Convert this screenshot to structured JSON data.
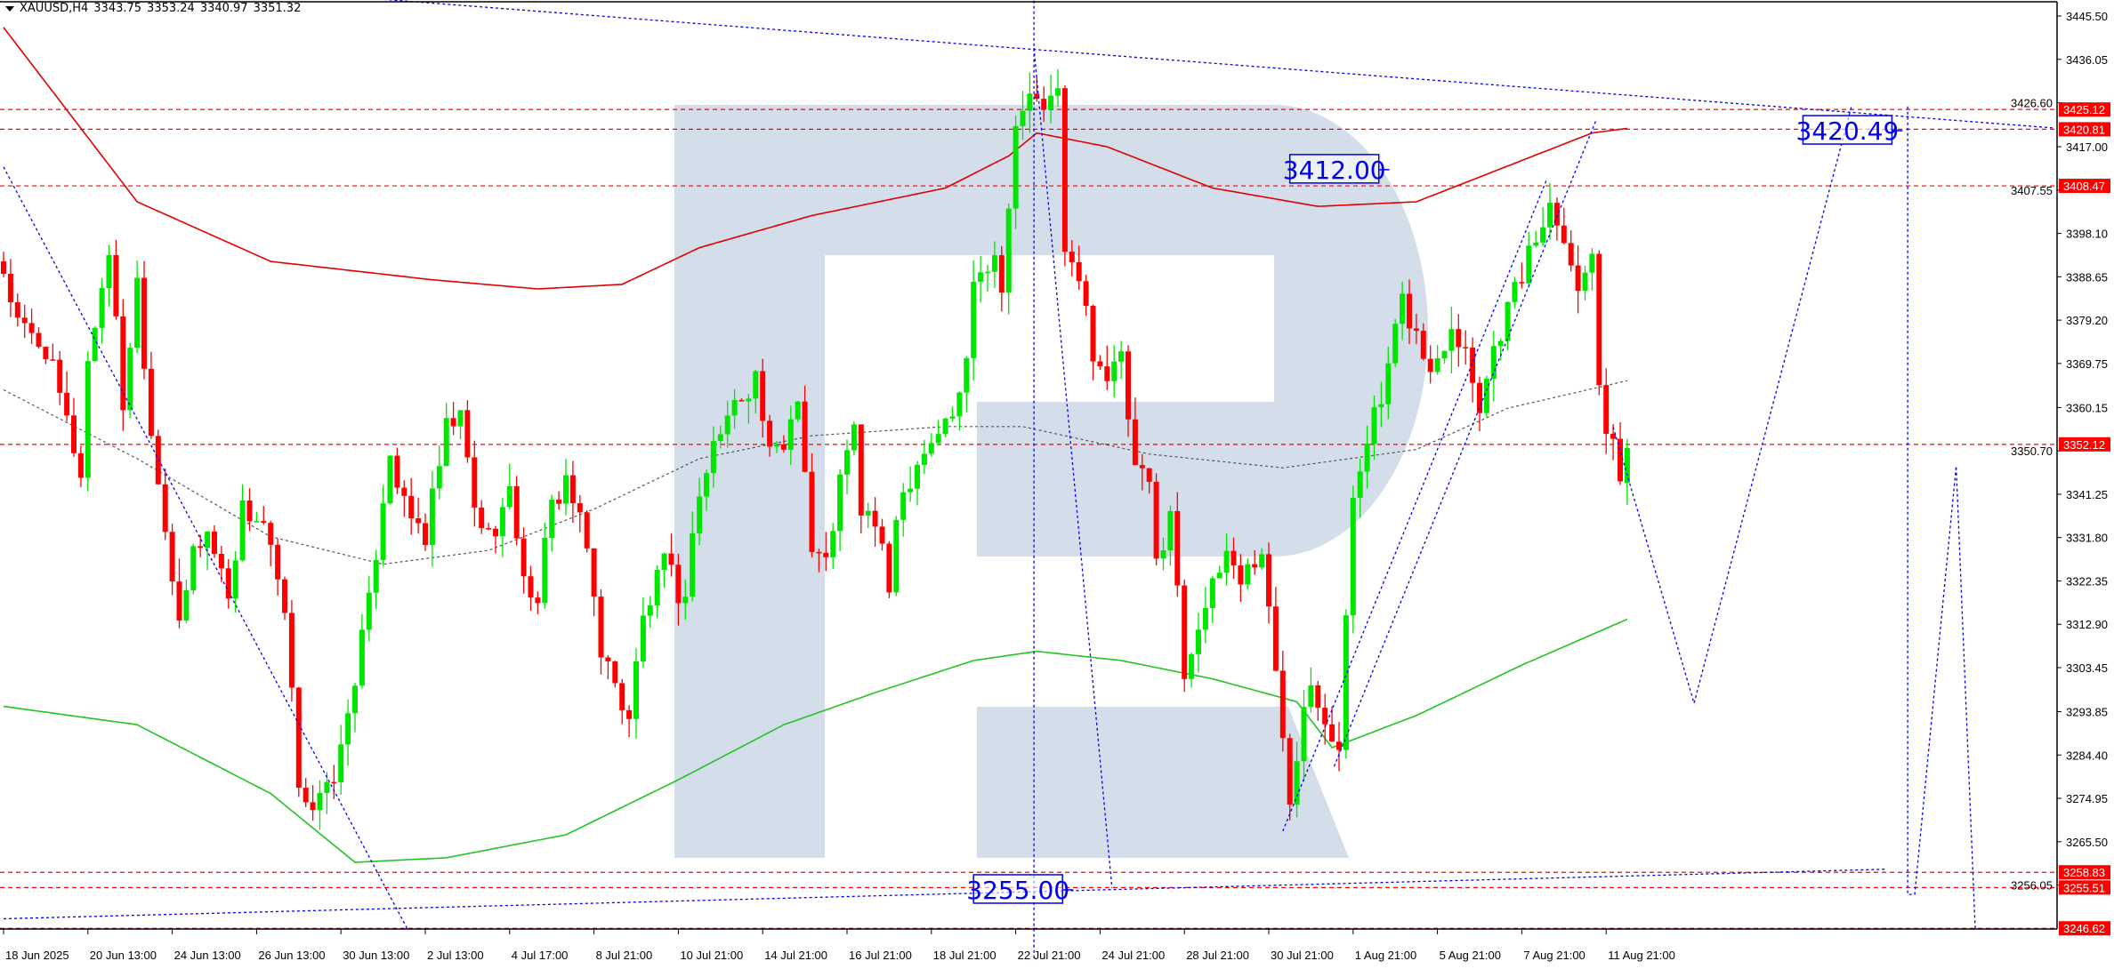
{
  "header": {
    "symbol": "XAUUSD,H4",
    "open": "3343.75",
    "high": "3353.24",
    "low": "3340.97",
    "close": "3351.32"
  },
  "colors": {
    "bull": "#00e600",
    "bear": "#ff0000",
    "ma_slow": "#e00000",
    "ma_mid": "#555555",
    "ma_green": "#22c322",
    "levels": "#ff0000",
    "drawings": "#0000ee",
    "watermark": "#d3deea"
  },
  "chart_data": {
    "type": "candlestick",
    "symbol": "XAUUSD",
    "timeframe": "H4",
    "ylim": [
      3246.62,
      3445.5
    ],
    "y_ticks": [
      "3445.50",
      "3436.05",
      "3426.60",
      "3417.00",
      "3407.55",
      "3398.10",
      "3388.65",
      "3379.20",
      "3369.75",
      "3360.15",
      "3350.70",
      "3341.25",
      "3331.80",
      "3322.35",
      "3312.90",
      "3303.45",
      "3293.85",
      "3284.40",
      "3274.95",
      "3265.50",
      "3256.05"
    ],
    "x_labels": [
      "18 Jun 2025",
      "20 Jun 13:00",
      "24 Jun 13:00",
      "26 Jun 13:00",
      "30 Jun 13:00",
      "2 Jul 13:00",
      "4 Jul 17:00",
      "8 Jul 21:00",
      "10 Jul 21:00",
      "14 Jul 21:00",
      "16 Jul 21:00",
      "18 Jul 21:00",
      "22 Jul 21:00",
      "24 Jul 21:00",
      "28 Jul 21:00",
      "30 Jul 21:00",
      "1 Aug 21:00",
      "5 Aug 21:00",
      "7 Aug 21:00",
      "11 Aug 21:00"
    ],
    "bars_per_label": 12,
    "price_path_bar_close": [
      [
        0,
        3390
      ],
      [
        2,
        3378
      ],
      [
        6,
        3373
      ],
      [
        11,
        3346
      ],
      [
        12,
        3370
      ],
      [
        15,
        3395
      ],
      [
        17,
        3361
      ],
      [
        19,
        3388
      ],
      [
        21,
        3355
      ],
      [
        23,
        3335
      ],
      [
        25,
        3311
      ],
      [
        27,
        3329
      ],
      [
        29,
        3333
      ],
      [
        32,
        3320
      ],
      [
        34,
        3338
      ],
      [
        37,
        3335
      ],
      [
        40,
        3314
      ],
      [
        42,
        3279
      ],
      [
        44,
        3273
      ],
      [
        46,
        3276
      ],
      [
        48,
        3285
      ],
      [
        50,
        3302
      ],
      [
        52,
        3317
      ],
      [
        54,
        3341
      ],
      [
        55,
        3351
      ],
      [
        57,
        3338
      ],
      [
        60,
        3332
      ],
      [
        63,
        3355
      ],
      [
        65,
        3358
      ],
      [
        67,
        3338
      ],
      [
        69,
        3332
      ],
      [
        72,
        3341
      ],
      [
        75,
        3317
      ],
      [
        76,
        3320
      ],
      [
        78,
        3338
      ],
      [
        80,
        3345
      ],
      [
        83,
        3329
      ],
      [
        85,
        3308
      ],
      [
        87,
        3299
      ],
      [
        89,
        3293
      ],
      [
        91,
        3314
      ],
      [
        94,
        3326
      ],
      [
        97,
        3317
      ],
      [
        98,
        3335
      ],
      [
        101,
        3352
      ],
      [
        104,
        3361
      ],
      [
        107,
        3367
      ],
      [
        109,
        3349
      ],
      [
        111,
        3352
      ],
      [
        113,
        3364
      ],
      [
        115,
        3329
      ],
      [
        117,
        3326
      ],
      [
        119,
        3344
      ],
      [
        121,
        3355
      ],
      [
        122,
        3338
      ],
      [
        124,
        3335
      ],
      [
        126,
        3320
      ],
      [
        127,
        3338
      ],
      [
        130,
        3349
      ],
      [
        133,
        3355
      ],
      [
        135,
        3358
      ],
      [
        137,
        3370
      ],
      [
        138,
        3390
      ],
      [
        141,
        3393
      ],
      [
        142,
        3388
      ],
      [
        144,
        3420
      ],
      [
        146,
        3429
      ],
      [
        148,
        3423
      ],
      [
        150,
        3432
      ],
      [
        151,
        3393
      ],
      [
        153,
        3388
      ],
      [
        155,
        3373
      ],
      [
        157,
        3367
      ],
      [
        159,
        3370
      ],
      [
        161,
        3346
      ],
      [
        163,
        3343
      ],
      [
        164,
        3326
      ],
      [
        166,
        3338
      ],
      [
        168,
        3302
      ],
      [
        170,
        3314
      ],
      [
        172,
        3320
      ],
      [
        174,
        3329
      ],
      [
        176,
        3323
      ],
      [
        179,
        3329
      ],
      [
        181,
        3302
      ],
      [
        183,
        3276
      ],
      [
        185,
        3296
      ],
      [
        186,
        3302
      ],
      [
        188,
        3293
      ],
      [
        190,
        3285
      ],
      [
        192,
        3341
      ],
      [
        194,
        3355
      ],
      [
        196,
        3361
      ],
      [
        199,
        3383
      ],
      [
        201,
        3376
      ],
      [
        203,
        3367
      ],
      [
        206,
        3379
      ],
      [
        208,
        3373
      ],
      [
        210,
        3361
      ],
      [
        212,
        3373
      ],
      [
        214,
        3382
      ],
      [
        217,
        3393
      ],
      [
        220,
        3405
      ],
      [
        222,
        3399
      ],
      [
        224,
        3385
      ],
      [
        226,
        3396
      ],
      [
        227,
        3367
      ],
      [
        228,
        3355
      ],
      [
        230,
        3346
      ],
      [
        231,
        3351.32
      ]
    ],
    "moving_averages": [
      {
        "color_key": "ma_slow",
        "style": "solid",
        "points": [
          [
            0,
            3443
          ],
          [
            19,
            3405
          ],
          [
            38,
            3392
          ],
          [
            61,
            3388
          ],
          [
            76,
            3386
          ],
          [
            88,
            3387
          ],
          [
            99,
            3395
          ],
          [
            115,
            3402
          ],
          [
            134,
            3408
          ],
          [
            143,
            3415
          ],
          [
            147,
            3420
          ],
          [
            157,
            3417
          ],
          [
            172,
            3408
          ],
          [
            187,
            3404
          ],
          [
            201,
            3405
          ],
          [
            216,
            3414
          ],
          [
            226,
            3420
          ],
          [
            231,
            3421
          ]
        ]
      },
      {
        "color_key": "ma_mid",
        "style": "dotted",
        "points": [
          [
            0,
            3364
          ],
          [
            19,
            3349
          ],
          [
            38,
            3332
          ],
          [
            54,
            3326
          ],
          [
            69,
            3329
          ],
          [
            84,
            3338
          ],
          [
            99,
            3349
          ],
          [
            115,
            3354
          ],
          [
            134,
            3356
          ],
          [
            145,
            3356
          ],
          [
            163,
            3350
          ],
          [
            182,
            3347
          ],
          [
            201,
            3351
          ],
          [
            214,
            3360
          ],
          [
            231,
            3366
          ]
        ]
      },
      {
        "color_key": "ma_green",
        "style": "solid",
        "points": [
          [
            0,
            3295
          ],
          [
            19,
            3291
          ],
          [
            38,
            3276
          ],
          [
            50,
            3261
          ],
          [
            63,
            3262
          ],
          [
            80,
            3267
          ],
          [
            96,
            3279
          ],
          [
            111,
            3291
          ],
          [
            124,
            3298
          ],
          [
            138,
            3305
          ],
          [
            147,
            3307
          ],
          [
            159,
            3305
          ],
          [
            172,
            3301
          ],
          [
            184,
            3296
          ],
          [
            189,
            3286
          ],
          [
            201,
            3293
          ],
          [
            216,
            3304
          ],
          [
            231,
            3314
          ]
        ]
      }
    ],
    "horizontal_levels": [
      {
        "price": 3425.12,
        "label": "3425.12"
      },
      {
        "price": 3420.81,
        "label": "3420.81"
      },
      {
        "price": 3408.47,
        "label": "3408.47"
      },
      {
        "price": 3352.12,
        "label": "3352.12"
      },
      {
        "price": 3258.83,
        "label": "3258.83"
      },
      {
        "price": 3255.51,
        "label": "3255.51"
      },
      {
        "price": 3246.62,
        "label": "3246.62"
      }
    ],
    "trend_lines": [
      [
        [
          52.6,
          3449.3
        ],
        [
          291.6,
          3421.1
        ]
      ],
      [
        [
          0,
          3248.7
        ],
        [
          267.7,
          3259.5
        ]
      ],
      [
        [
          146.6,
          3450
        ],
        [
          146.6,
          3240
        ]
      ],
      [
        [
          146.6,
          3438.5
        ],
        [
          157.7,
          3255.4
        ]
      ],
      [
        [
          0,
          3412.6
        ],
        [
          57.4,
          3246.6
        ]
      ],
      [
        [
          182,
          3267.8
        ],
        [
          219.5,
          3409.7
        ]
      ],
      [
        [
          189.3,
          3281.9
        ],
        [
          226.6,
          3422.9
        ]
      ]
    ],
    "forecast_path": [
      [
        229,
        3355.9
      ],
      [
        240.5,
        3295.7
      ],
      [
        262.9,
        3425.8
      ]
    ],
    "forecast_path_2": [
      [
        270.9,
        3425.8
      ],
      [
        270.9,
        3254
      ],
      [
        271.9,
        3254
      ],
      [
        277.8,
        3347.4
      ],
      [
        280.5,
        3246.6
      ]
    ],
    "price_labels": [
      {
        "text": "3412.00",
        "bar": 183,
        "price": 3412.0
      },
      {
        "text": "3255.00",
        "bar": 138,
        "price": 3255.0
      },
      {
        "text": "3420.49",
        "bar": 256,
        "price": 3420.49
      }
    ]
  }
}
